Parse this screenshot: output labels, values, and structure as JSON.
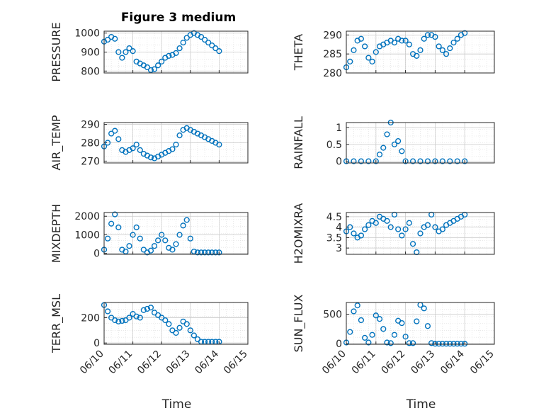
{
  "figure": {
    "title": "Figure 3 medium"
  },
  "chart_data": [
    {
      "type": "scatter",
      "ylabel": "PRESSURE",
      "xlabel": "",
      "ylim": [
        790,
        1010
      ],
      "yticks": [
        "800",
        "900",
        "1000"
      ],
      "xlim": [
        "06/10",
        "06/15"
      ],
      "grid": true,
      "series": [
        {
          "x": [
            "06/10 00:00",
            "06/10 03:00",
            "06/10 06:00",
            "06/10 09:00",
            "06/10 12:00",
            "06/10 15:00",
            "06/10 18:00",
            "06/10 21:00",
            "06/11 00:00",
            "06/11 03:00",
            "06/11 06:00",
            "06/11 09:00",
            "06/11 12:00",
            "06/11 15:00",
            "06/11 18:00",
            "06/11 21:00",
            "06/12 00:00",
            "06/12 03:00",
            "06/12 06:00",
            "06/12 09:00",
            "06/12 12:00",
            "06/12 15:00",
            "06/12 18:00",
            "06/12 21:00",
            "06/13 00:00",
            "06/13 03:00",
            "06/13 06:00",
            "06/13 09:00",
            "06/13 12:00",
            "06/13 15:00",
            "06/13 18:00",
            "06/13 21:00",
            "06/14 00:00"
          ],
          "y": [
            955,
            965,
            980,
            970,
            900,
            870,
            900,
            920,
            905,
            850,
            840,
            830,
            820,
            805,
            810,
            830,
            850,
            870,
            880,
            885,
            895,
            920,
            950,
            975,
            990,
            1000,
            990,
            980,
            965,
            950,
            935,
            920,
            905
          ]
        }
      ]
    },
    {
      "type": "scatter",
      "ylabel": "THETA",
      "xlabel": "",
      "ylim": [
        280,
        291
      ],
      "yticks": [
        "280",
        "285",
        "290"
      ],
      "xlim": [
        "06/10",
        "06/15"
      ],
      "grid": true,
      "series": [
        {
          "x": [
            "06/10 00:00",
            "06/10 03:00",
            "06/10 06:00",
            "06/10 09:00",
            "06/10 12:00",
            "06/10 15:00",
            "06/10 18:00",
            "06/10 21:00",
            "06/11 00:00",
            "06/11 03:00",
            "06/11 06:00",
            "06/11 09:00",
            "06/11 12:00",
            "06/11 15:00",
            "06/11 18:00",
            "06/11 21:00",
            "06/12 00:00",
            "06/12 03:00",
            "06/12 06:00",
            "06/12 09:00",
            "06/12 12:00",
            "06/12 15:00",
            "06/12 18:00",
            "06/12 21:00",
            "06/13 00:00",
            "06/13 03:00",
            "06/13 06:00",
            "06/13 09:00",
            "06/13 12:00",
            "06/13 15:00",
            "06/13 18:00",
            "06/13 21:00",
            "06/14 00:00"
          ],
          "y": [
            281.5,
            283,
            286,
            288.5,
            289,
            287,
            284,
            283,
            285.5,
            287,
            287.5,
            288,
            288.5,
            288,
            289,
            288.5,
            288.5,
            287.5,
            285,
            284.5,
            286,
            289,
            290,
            290,
            289.5,
            287,
            286,
            285,
            286.5,
            288,
            289,
            290,
            290.5
          ]
        }
      ]
    },
    {
      "type": "scatter",
      "ylabel": "AIR_TEMP",
      "xlabel": "",
      "ylim": [
        269,
        291
      ],
      "yticks": [
        "270",
        "280",
        "290"
      ],
      "xlim": [
        "06/10",
        "06/15"
      ],
      "grid": true,
      "series": [
        {
          "x": [
            "06/10 00:00",
            "06/10 03:00",
            "06/10 06:00",
            "06/10 09:00",
            "06/10 12:00",
            "06/10 15:00",
            "06/10 18:00",
            "06/10 21:00",
            "06/11 00:00",
            "06/11 03:00",
            "06/11 06:00",
            "06/11 09:00",
            "06/11 12:00",
            "06/11 15:00",
            "06/11 18:00",
            "06/11 21:00",
            "06/12 00:00",
            "06/12 03:00",
            "06/12 06:00",
            "06/12 09:00",
            "06/12 12:00",
            "06/12 15:00",
            "06/12 18:00",
            "06/12 21:00",
            "06/13 00:00",
            "06/13 03:00",
            "06/13 06:00",
            "06/13 09:00",
            "06/13 12:00",
            "06/13 15:00",
            "06/13 18:00",
            "06/13 21:00",
            "06/14 00:00"
          ],
          "y": [
            278,
            280,
            285,
            286.5,
            282,
            276,
            275,
            276,
            277,
            279,
            276,
            274,
            273,
            272,
            271.5,
            272.5,
            273.5,
            274.5,
            275.5,
            276.5,
            279,
            284,
            287,
            288,
            287,
            286,
            285,
            284,
            283,
            282,
            281,
            280,
            279
          ]
        }
      ]
    },
    {
      "type": "scatter",
      "ylabel": "RAINFALL",
      "xlabel": "",
      "ylim": [
        -0.05,
        1.15
      ],
      "yticks": [
        "0",
        "0.5",
        "1"
      ],
      "xlim": [
        "06/10",
        "06/15"
      ],
      "grid": true,
      "series": [
        {
          "x": [
            "06/10 00:00",
            "06/10 06:00",
            "06/10 12:00",
            "06/10 18:00",
            "06/11 00:00",
            "06/11 03:00",
            "06/11 06:00",
            "06/11 09:00",
            "06/11 12:00",
            "06/11 15:00",
            "06/11 18:00",
            "06/11 21:00",
            "06/12 00:00",
            "06/12 06:00",
            "06/12 12:00",
            "06/12 18:00",
            "06/13 00:00",
            "06/13 06:00",
            "06/13 12:00",
            "06/13 18:00",
            "06/14 00:00"
          ],
          "y": [
            0,
            0,
            0,
            0,
            0,
            0.2,
            0.4,
            0.8,
            1.15,
            0.5,
            0.6,
            0.3,
            0,
            0,
            0,
            0,
            0,
            0,
            0,
            0,
            0
          ]
        }
      ]
    },
    {
      "type": "scatter",
      "ylabel": "MIXDEPTH",
      "xlabel": "",
      "ylim": [
        -50,
        2200
      ],
      "yticks": [
        "0",
        "1000",
        "2000"
      ],
      "xlim": [
        "06/10",
        "06/15"
      ],
      "grid": true,
      "series": [
        {
          "x": [
            "06/10 00:00",
            "06/10 03:00",
            "06/10 06:00",
            "06/10 09:00",
            "06/10 12:00",
            "06/10 15:00",
            "06/10 18:00",
            "06/10 21:00",
            "06/11 00:00",
            "06/11 03:00",
            "06/11 06:00",
            "06/11 09:00",
            "06/11 12:00",
            "06/11 15:00",
            "06/11 18:00",
            "06/11 21:00",
            "06/12 00:00",
            "06/12 03:00",
            "06/12 06:00",
            "06/12 09:00",
            "06/12 12:00",
            "06/12 15:00",
            "06/12 18:00",
            "06/12 21:00",
            "06/13 00:00",
            "06/13 03:00",
            "06/13 06:00",
            "06/13 09:00",
            "06/13 12:00",
            "06/13 15:00",
            "06/13 18:00",
            "06/13 21:00",
            "06/14 00:00"
          ],
          "y": [
            200,
            800,
            1600,
            2100,
            1400,
            200,
            100,
            400,
            1000,
            1400,
            800,
            200,
            50,
            150,
            400,
            700,
            1000,
            700,
            300,
            200,
            500,
            1000,
            1500,
            1800,
            800,
            100,
            50,
            50,
            50,
            50,
            50,
            50,
            50
          ]
        }
      ]
    },
    {
      "type": "scatter",
      "ylabel": "H2OMIXRA",
      "xlabel": "",
      "ylim": [
        2.7,
        4.7
      ],
      "yticks": [
        "3",
        "3.5",
        "4",
        "4.5"
      ],
      "xlim": [
        "06/10",
        "06/15"
      ],
      "grid": true,
      "series": [
        {
          "x": [
            "06/10 00:00",
            "06/10 03:00",
            "06/10 06:00",
            "06/10 09:00",
            "06/10 12:00",
            "06/10 15:00",
            "06/10 18:00",
            "06/10 21:00",
            "06/11 00:00",
            "06/11 03:00",
            "06/11 06:00",
            "06/11 09:00",
            "06/11 12:00",
            "06/11 15:00",
            "06/11 18:00",
            "06/11 21:00",
            "06/12 00:00",
            "06/12 03:00",
            "06/12 06:00",
            "06/12 09:00",
            "06/12 12:00",
            "06/12 15:00",
            "06/12 18:00",
            "06/12 21:00",
            "06/13 00:00",
            "06/13 03:00",
            "06/13 06:00",
            "06/13 09:00",
            "06/13 12:00",
            "06/13 15:00",
            "06/13 18:00",
            "06/13 21:00",
            "06/14 00:00"
          ],
          "y": [
            3.8,
            4.0,
            3.7,
            3.5,
            3.6,
            3.9,
            4.1,
            4.3,
            4.2,
            4.5,
            4.4,
            4.3,
            4.0,
            4.6,
            3.9,
            3.6,
            3.9,
            4.2,
            3.2,
            2.8,
            3.7,
            4.0,
            4.1,
            4.6,
            4.0,
            3.8,
            3.9,
            4.1,
            4.2,
            4.3,
            4.4,
            4.5,
            4.6
          ]
        }
      ]
    },
    {
      "type": "scatter",
      "ylabel": "TERR_MSL",
      "xlabel": "Time",
      "ylim": [
        -10,
        320
      ],
      "yticks": [
        "0",
        "200"
      ],
      "xlim": [
        "06/10",
        "06/15"
      ],
      "xticks": [
        "06/10",
        "06/11",
        "06/12",
        "06/13",
        "06/14",
        "06/15"
      ],
      "grid": true,
      "series": [
        {
          "x": [
            "06/10 00:00",
            "06/10 03:00",
            "06/10 06:00",
            "06/10 09:00",
            "06/10 12:00",
            "06/10 15:00",
            "06/10 18:00",
            "06/10 21:00",
            "06/11 00:00",
            "06/11 03:00",
            "06/11 06:00",
            "06/11 09:00",
            "06/11 12:00",
            "06/11 15:00",
            "06/11 18:00",
            "06/11 21:00",
            "06/12 00:00",
            "06/12 03:00",
            "06/12 06:00",
            "06/12 09:00",
            "06/12 12:00",
            "06/12 15:00",
            "06/12 18:00",
            "06/12 21:00",
            "06/13 00:00",
            "06/13 03:00",
            "06/13 06:00",
            "06/13 09:00",
            "06/13 12:00",
            "06/13 15:00",
            "06/13 18:00",
            "06/13 21:00",
            "06/14 00:00"
          ],
          "y": [
            300,
            250,
            200,
            180,
            170,
            175,
            180,
            200,
            230,
            210,
            200,
            260,
            270,
            280,
            240,
            220,
            200,
            180,
            150,
            100,
            80,
            120,
            170,
            150,
            100,
            60,
            30,
            10,
            10,
            10,
            10,
            10,
            10
          ]
        }
      ]
    },
    {
      "type": "scatter",
      "ylabel": "SUN_FLUX",
      "xlabel": "Time",
      "ylim": [
        -10,
        700
      ],
      "yticks": [
        "0",
        "500"
      ],
      "xlim": [
        "06/10",
        "06/15"
      ],
      "xticks": [
        "06/10",
        "06/11",
        "06/12",
        "06/13",
        "06/14",
        "06/15"
      ],
      "grid": true,
      "series": [
        {
          "x": [
            "06/10 00:00",
            "06/10 03:00",
            "06/10 06:00",
            "06/10 09:00",
            "06/10 12:00",
            "06/10 15:00",
            "06/10 18:00",
            "06/10 21:00",
            "06/11 00:00",
            "06/11 03:00",
            "06/11 06:00",
            "06/11 09:00",
            "06/11 12:00",
            "06/11 15:00",
            "06/11 18:00",
            "06/11 21:00",
            "06/12 00:00",
            "06/12 03:00",
            "06/12 06:00",
            "06/12 09:00",
            "06/12 12:00",
            "06/12 15:00",
            "06/12 18:00",
            "06/12 21:00",
            "06/13 00:00",
            "06/13 03:00",
            "06/13 06:00",
            "06/13 09:00",
            "06/13 12:00",
            "06/13 15:00",
            "06/13 18:00",
            "06/13 21:00",
            "06/14 00:00"
          ],
          "y": [
            20,
            200,
            550,
            650,
            400,
            100,
            20,
            150,
            480,
            420,
            250,
            20,
            10,
            150,
            390,
            350,
            120,
            10,
            10,
            380,
            660,
            600,
            300,
            10,
            0,
            0,
            0,
            0,
            0,
            0,
            0,
            0,
            0
          ]
        }
      ]
    }
  ]
}
